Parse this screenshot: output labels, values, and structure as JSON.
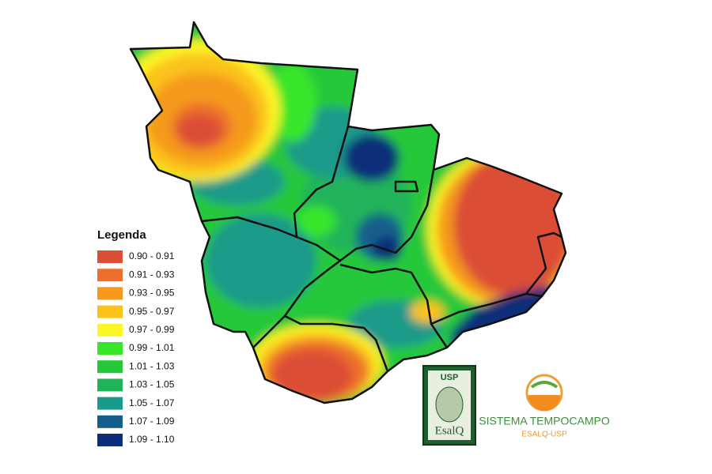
{
  "legend": {
    "title": "Legenda",
    "items": [
      {
        "label": "0.90 - 0.91",
        "color": "#dc4e36"
      },
      {
        "label": "0.91 - 0.93",
        "color": "#ec6f2c"
      },
      {
        "label": "0.93 - 0.95",
        "color": "#f59a1e"
      },
      {
        "label": "0.95 - 0.97",
        "color": "#fbc21a"
      },
      {
        "label": "0.97 - 0.99",
        "color": "#fbf625"
      },
      {
        "label": "0.99 - 1.01",
        "color": "#38e52a"
      },
      {
        "label": "1.01 - 1.03",
        "color": "#25c83a"
      },
      {
        "label": "1.03 - 1.05",
        "color": "#20b45a"
      },
      {
        "label": "1.05 - 1.07",
        "color": "#1a9a8a"
      },
      {
        "label": "1.07 - 1.09",
        "color": "#135e8a"
      },
      {
        "label": "1.09 - 1.10",
        "color": "#0c2d78"
      }
    ]
  },
  "logos": {
    "usp": "USP",
    "esalq": "EsalQ",
    "sistema": "SISTEMA TEMPOCAMPO",
    "subtitle": "ESALQ-USP"
  }
}
